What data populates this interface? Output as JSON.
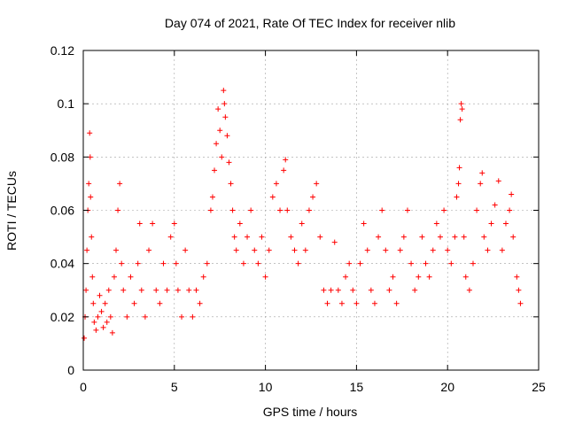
{
  "chart_data": {
    "type": "scatter",
    "title": "Day 074 of 2021, Rate Of TEC Index for receiver nlib",
    "xlabel": "GPS time / hours",
    "ylabel": "ROTI / TECUs",
    "xlim": [
      0,
      25
    ],
    "ylim": [
      0,
      0.12
    ],
    "xticks": [
      0,
      5,
      10,
      15,
      20,
      25
    ],
    "xtick_labels": [
      "0",
      "5",
      "10",
      "15",
      "20",
      "25"
    ],
    "yticks": [
      0,
      0.02,
      0.04,
      0.06,
      0.08,
      0.1,
      0.12
    ],
    "ytick_labels": [
      "0",
      "0.02",
      "0.04",
      "0.06",
      "0.08",
      "0.1",
      "0.12"
    ],
    "grid": true,
    "marker": "+",
    "color": "#ff0000",
    "series": [
      {
        "name": "ROTI",
        "points": [
          [
            0.05,
            0.012
          ],
          [
            0.1,
            0.02
          ],
          [
            0.15,
            0.03
          ],
          [
            0.2,
            0.045
          ],
          [
            0.25,
            0.06
          ],
          [
            0.3,
            0.07
          ],
          [
            0.35,
            0.089
          ],
          [
            0.38,
            0.08
          ],
          [
            0.4,
            0.065
          ],
          [
            0.45,
            0.05
          ],
          [
            0.5,
            0.035
          ],
          [
            0.55,
            0.025
          ],
          [
            0.6,
            0.018
          ],
          [
            0.7,
            0.015
          ],
          [
            0.8,
            0.02
          ],
          [
            0.9,
            0.028
          ],
          [
            1.0,
            0.022
          ],
          [
            1.1,
            0.016
          ],
          [
            1.2,
            0.025
          ],
          [
            1.3,
            0.018
          ],
          [
            1.4,
            0.03
          ],
          [
            1.5,
            0.02
          ],
          [
            1.6,
            0.014
          ],
          [
            1.7,
            0.035
          ],
          [
            1.8,
            0.045
          ],
          [
            1.9,
            0.06
          ],
          [
            2.0,
            0.07
          ],
          [
            2.1,
            0.04
          ],
          [
            2.2,
            0.03
          ],
          [
            2.4,
            0.02
          ],
          [
            2.6,
            0.035
          ],
          [
            2.8,
            0.025
          ],
          [
            3.0,
            0.04
          ],
          [
            3.1,
            0.055
          ],
          [
            3.2,
            0.03
          ],
          [
            3.4,
            0.02
          ],
          [
            3.6,
            0.045
          ],
          [
            3.8,
            0.055
          ],
          [
            4.0,
            0.03
          ],
          [
            4.2,
            0.025
          ],
          [
            4.4,
            0.04
          ],
          [
            4.6,
            0.03
          ],
          [
            4.8,
            0.05
          ],
          [
            5.0,
            0.055
          ],
          [
            5.1,
            0.04
          ],
          [
            5.2,
            0.03
          ],
          [
            5.4,
            0.02
          ],
          [
            5.6,
            0.045
          ],
          [
            5.8,
            0.03
          ],
          [
            6.0,
            0.02
          ],
          [
            6.2,
            0.03
          ],
          [
            6.4,
            0.025
          ],
          [
            6.6,
            0.035
          ],
          [
            6.8,
            0.04
          ],
          [
            7.0,
            0.06
          ],
          [
            7.1,
            0.065
          ],
          [
            7.2,
            0.075
          ],
          [
            7.3,
            0.085
          ],
          [
            7.4,
            0.098
          ],
          [
            7.5,
            0.09
          ],
          [
            7.6,
            0.08
          ],
          [
            7.7,
            0.105
          ],
          [
            7.75,
            0.1
          ],
          [
            7.8,
            0.095
          ],
          [
            7.9,
            0.088
          ],
          [
            8.0,
            0.078
          ],
          [
            8.1,
            0.07
          ],
          [
            8.2,
            0.06
          ],
          [
            8.3,
            0.05
          ],
          [
            8.4,
            0.045
          ],
          [
            8.6,
            0.055
          ],
          [
            8.8,
            0.04
          ],
          [
            9.0,
            0.05
          ],
          [
            9.2,
            0.06
          ],
          [
            9.4,
            0.045
          ],
          [
            9.6,
            0.04
          ],
          [
            9.8,
            0.05
          ],
          [
            10.0,
            0.035
          ],
          [
            10.2,
            0.045
          ],
          [
            10.4,
            0.065
          ],
          [
            10.6,
            0.07
          ],
          [
            10.8,
            0.06
          ],
          [
            11.0,
            0.075
          ],
          [
            11.1,
            0.079
          ],
          [
            11.2,
            0.06
          ],
          [
            11.4,
            0.05
          ],
          [
            11.6,
            0.045
          ],
          [
            11.8,
            0.04
          ],
          [
            12.0,
            0.055
          ],
          [
            12.2,
            0.045
          ],
          [
            12.4,
            0.06
          ],
          [
            12.6,
            0.065
          ],
          [
            12.8,
            0.07
          ],
          [
            13.0,
            0.05
          ],
          [
            13.2,
            0.03
          ],
          [
            13.4,
            0.025
          ],
          [
            13.6,
            0.03
          ],
          [
            13.8,
            0.048
          ],
          [
            14.0,
            0.03
          ],
          [
            14.2,
            0.025
          ],
          [
            14.4,
            0.035
          ],
          [
            14.6,
            0.04
          ],
          [
            14.8,
            0.03
          ],
          [
            15.0,
            0.025
          ],
          [
            15.2,
            0.04
          ],
          [
            15.4,
            0.055
          ],
          [
            15.6,
            0.045
          ],
          [
            15.8,
            0.03
          ],
          [
            16.0,
            0.025
          ],
          [
            16.2,
            0.05
          ],
          [
            16.4,
            0.06
          ],
          [
            16.6,
            0.045
          ],
          [
            16.8,
            0.03
          ],
          [
            17.0,
            0.035
          ],
          [
            17.2,
            0.025
          ],
          [
            17.4,
            0.045
          ],
          [
            17.6,
            0.05
          ],
          [
            17.8,
            0.06
          ],
          [
            18.0,
            0.04
          ],
          [
            18.2,
            0.03
          ],
          [
            18.4,
            0.035
          ],
          [
            18.6,
            0.05
          ],
          [
            18.8,
            0.04
          ],
          [
            19.0,
            0.035
          ],
          [
            19.2,
            0.045
          ],
          [
            19.4,
            0.055
          ],
          [
            19.6,
            0.05
          ],
          [
            19.8,
            0.06
          ],
          [
            20.0,
            0.045
          ],
          [
            20.2,
            0.04
          ],
          [
            20.4,
            0.05
          ],
          [
            20.5,
            0.065
          ],
          [
            20.6,
            0.07
          ],
          [
            20.65,
            0.076
          ],
          [
            20.7,
            0.094
          ],
          [
            20.75,
            0.1
          ],
          [
            20.8,
            0.098
          ],
          [
            20.9,
            0.05
          ],
          [
            21.0,
            0.035
          ],
          [
            21.2,
            0.03
          ],
          [
            21.4,
            0.04
          ],
          [
            21.6,
            0.06
          ],
          [
            21.8,
            0.07
          ],
          [
            21.9,
            0.074
          ],
          [
            22.0,
            0.05
          ],
          [
            22.2,
            0.045
          ],
          [
            22.4,
            0.055
          ],
          [
            22.6,
            0.062
          ],
          [
            22.8,
            0.071
          ],
          [
            23.0,
            0.045
          ],
          [
            23.2,
            0.055
          ],
          [
            23.4,
            0.06
          ],
          [
            23.5,
            0.066
          ],
          [
            23.6,
            0.05
          ],
          [
            23.8,
            0.035
          ],
          [
            23.9,
            0.03
          ],
          [
            24.0,
            0.025
          ]
        ]
      }
    ]
  }
}
